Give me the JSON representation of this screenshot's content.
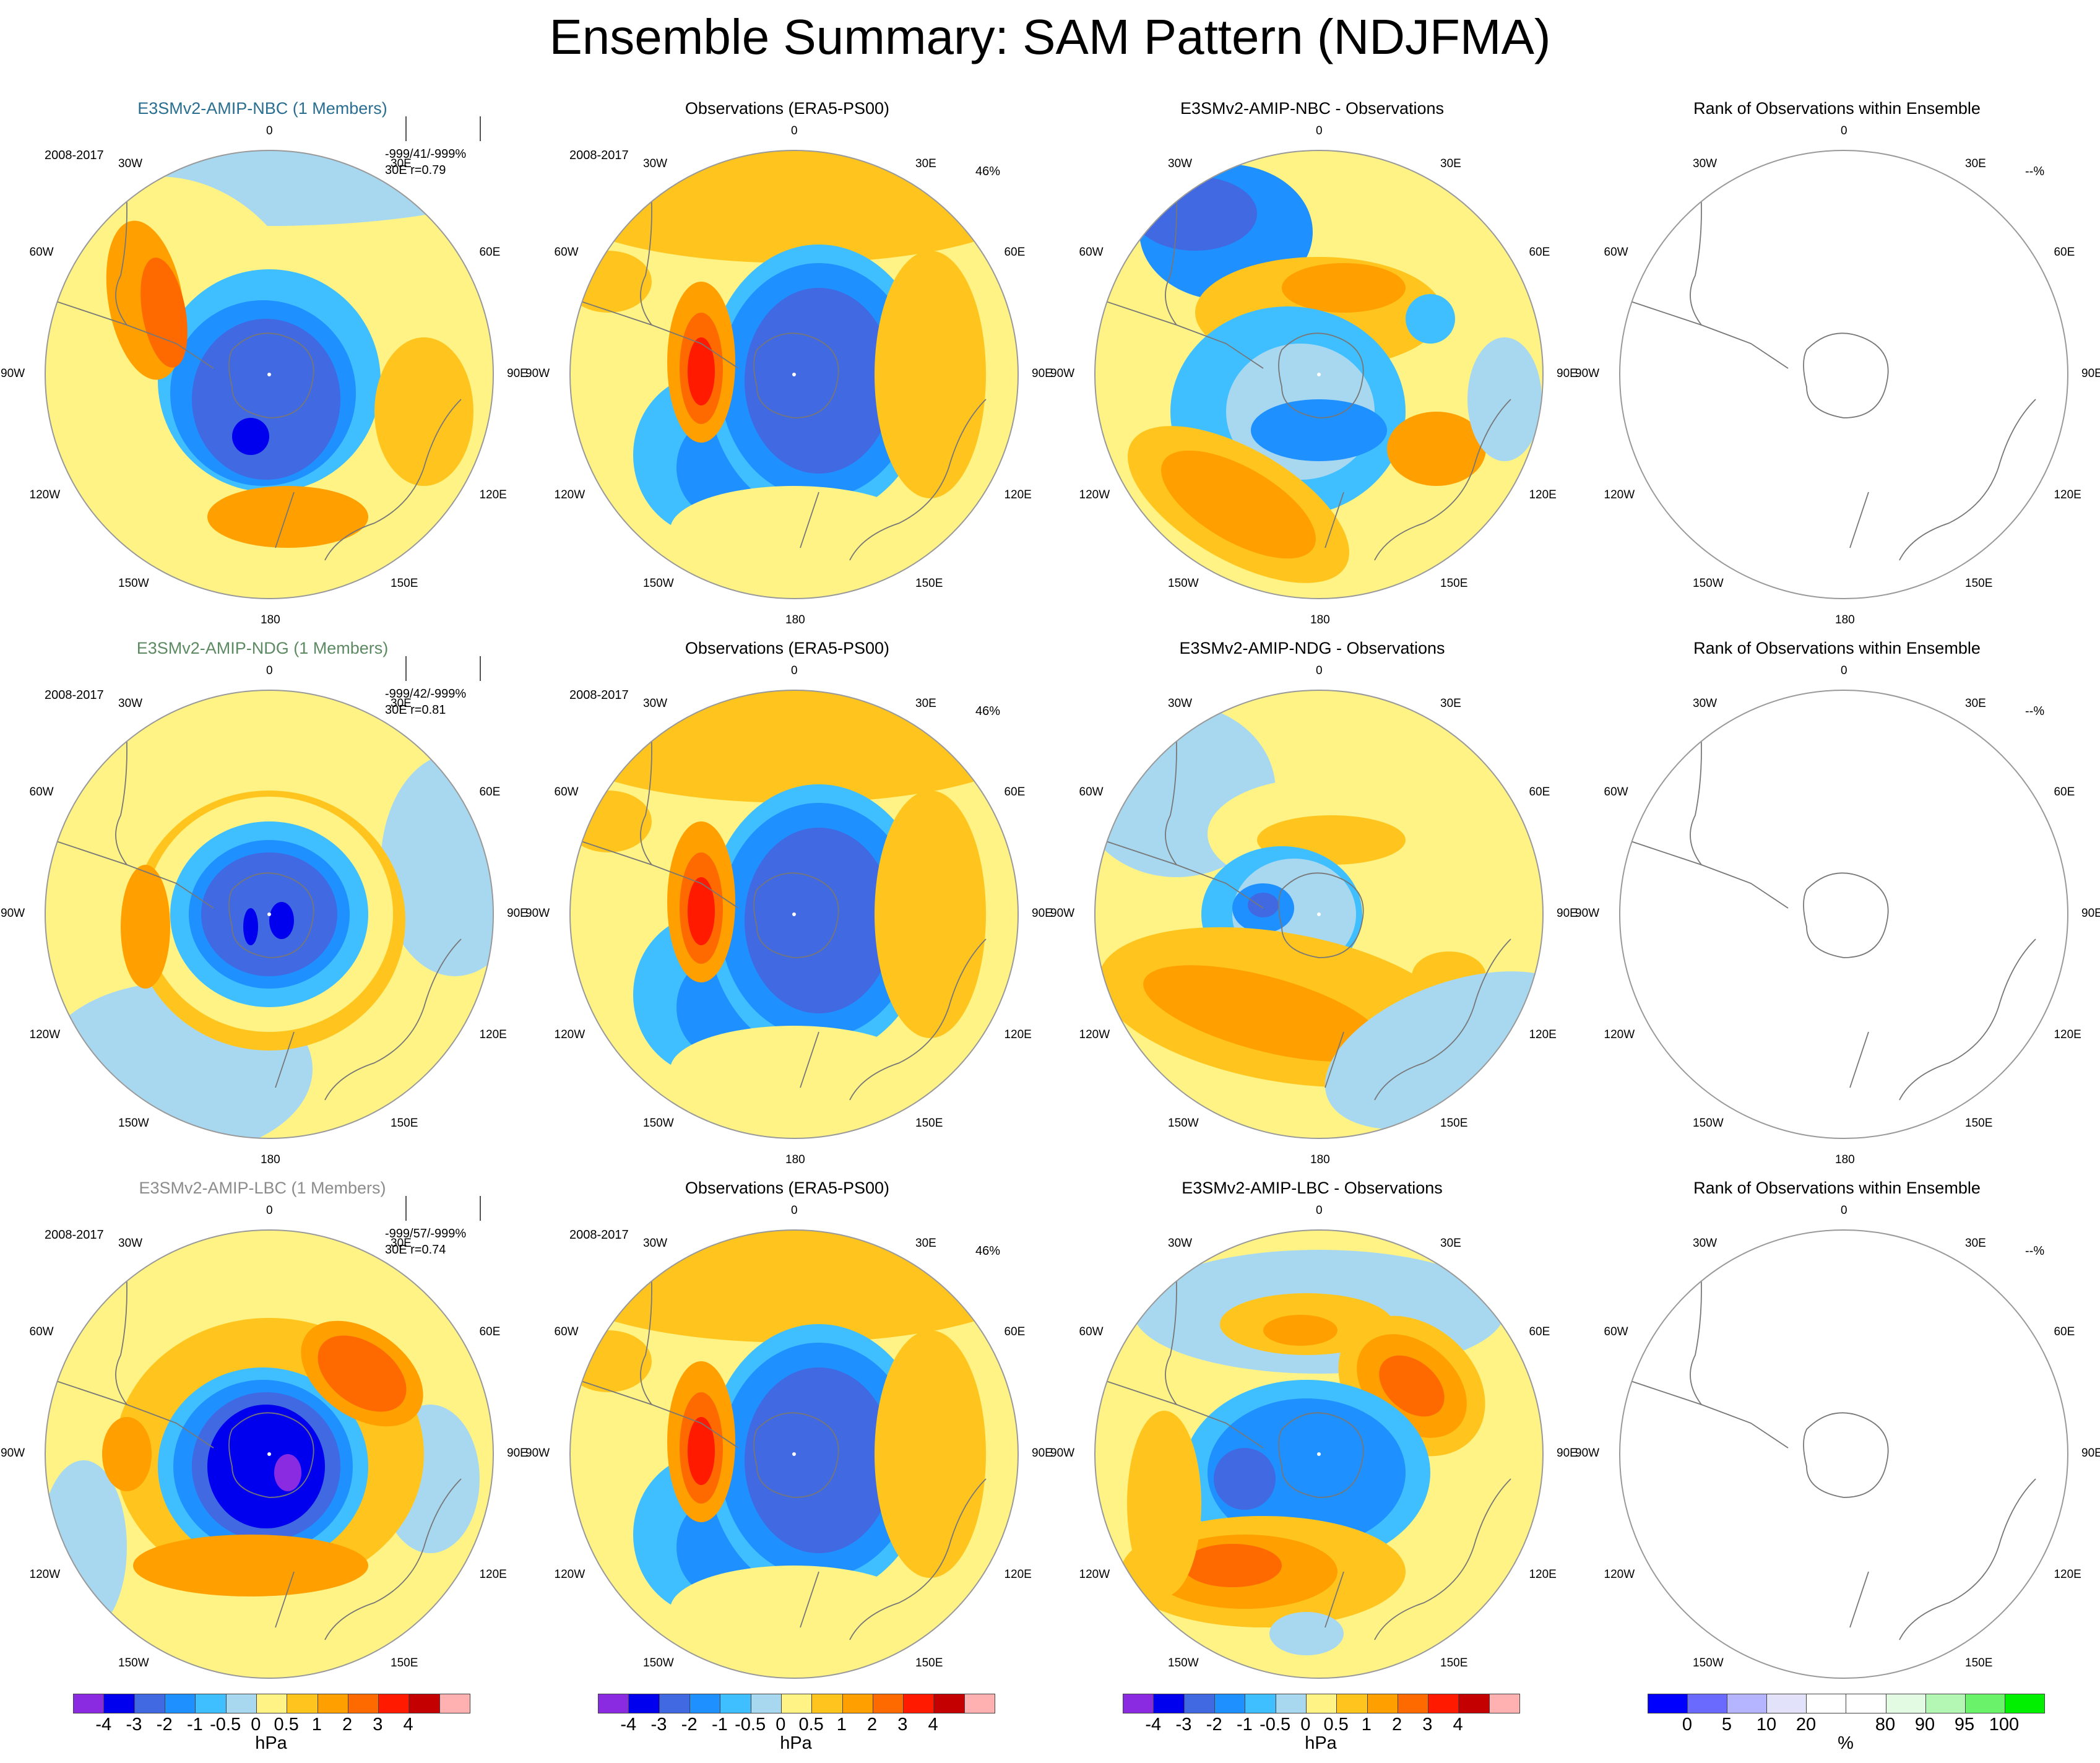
{
  "title": "Ensemble Summary: SAM Pattern (NDJFMA)",
  "lon_labels": [
    "0",
    "30E",
    "60E",
    "90E",
    "120E",
    "150E",
    "180",
    "150W",
    "120W",
    "90W",
    "60W",
    "30W"
  ],
  "rows": [
    {
      "model": {
        "title": "E3SMv2-AMIP-NBC (1 Members)",
        "title_color": "#2a6e91",
        "period": "2008-2017",
        "stat_line1": "-999/41/-999%",
        "stat_line2": "30E r=0.79"
      },
      "obs": {
        "title": "Observations (ERA5-PS00)",
        "period": "2008-2017",
        "pct": "46%"
      },
      "diff": {
        "title": "E3SMv2-AMIP-NBC - Observations"
      },
      "rank": {
        "title": "Rank of Observations within Ensemble",
        "pct": "--%"
      }
    },
    {
      "model": {
        "title": "E3SMv2-AMIP-NDG (1 Members)",
        "title_color": "#5d8a62",
        "period": "2008-2017",
        "stat_line1": "-999/42/-999%",
        "stat_line2": "30E r=0.81"
      },
      "obs": {
        "title": "Observations (ERA5-PS00)",
        "period": "2008-2017",
        "pct": "46%"
      },
      "diff": {
        "title": "E3SMv2-AMIP-NDG - Observations"
      },
      "rank": {
        "title": "Rank of Observations within Ensemble",
        "pct": "--%"
      }
    },
    {
      "model": {
        "title": "E3SMv2-AMIP-LBC (1 Members)",
        "title_color": "#8c8c8c",
        "period": "2008-2017",
        "stat_line1": "-999/57/-999%",
        "stat_line2": "30E r=0.74"
      },
      "obs": {
        "title": "Observations (ERA5-PS00)",
        "period": "2008-2017",
        "pct": "46%"
      },
      "diff": {
        "title": "E3SMv2-AMIP-LBC - Observations"
      },
      "rank": {
        "title": "Rank of Observations within Ensemble",
        "pct": "--%"
      }
    }
  ],
  "colorbars": {
    "hpa": {
      "colors": [
        "#8a2be2",
        "#0000ee",
        "#4169e1",
        "#1e90ff",
        "#3fbfff",
        "#a8d8f0",
        "#fff385",
        "#ffc51e",
        "#ff9f00",
        "#ff6a00",
        "#ff1a00",
        "#c40000",
        "#ffb0b0"
      ],
      "labels": [
        "-4",
        "-3",
        "-2",
        "-1",
        "-0.5",
        "0",
        "0.5",
        "1",
        "2",
        "3",
        "4"
      ],
      "unit": "hPa"
    },
    "pct": {
      "colors": [
        "#0000ff",
        "#6a6aff",
        "#b4b4ff",
        "#e2e2fb",
        "#ffffff",
        "#ffffff",
        "#e2fbe2",
        "#b4f6b4",
        "#6af26a",
        "#00f000"
      ],
      "labels": [
        "0",
        "5",
        "10",
        "20",
        "80",
        "90",
        "95",
        "100"
      ],
      "unit": "%"
    }
  },
  "chart_data": [
    {
      "type": "heatmap",
      "description_units": "hPa",
      "panels": [
        {
          "title": "E3SMv2-AMIP-NBC (1 Members)",
          "stats": "-999/41/-999%",
          "corr": "30E r=0.79"
        },
        {
          "title": "Observations (ERA5-PS00)",
          "pct": "46%"
        },
        {
          "title": "E3SMv2-AMIP-NBC - Observations"
        },
        {
          "title": "Rank of Observations within Ensemble",
          "pct": "--%"
        },
        {
          "title": "E3SMv2-AMIP-NDG (1 Members)",
          "stats": "-999/42/-999%",
          "corr": "30E r=0.81"
        },
        {
          "title": "Observations (ERA5-PS00)",
          "pct": "46%"
        },
        {
          "title": "E3SMv2-AMIP-NDG - Observations"
        },
        {
          "title": "Rank of Observations within Ensemble",
          "pct": "--%"
        },
        {
          "title": "E3SMv2-AMIP-LBC (1 Members)",
          "stats": "-999/57/-999%",
          "corr": "30E r=0.74"
        },
        {
          "title": "Observations (ERA5-PS00)",
          "pct": "46%"
        },
        {
          "title": "E3SMv2-AMIP-LBC - Observations"
        },
        {
          "title": "Rank of Observations within Ensemble",
          "pct": "--%"
        }
      ],
      "contour_levels_hpa": [
        -4,
        -3,
        -2,
        -1,
        -0.5,
        0,
        0.5,
        1,
        2,
        3,
        4
      ],
      "rank_levels_pct": [
        0,
        5,
        10,
        20,
        80,
        90,
        95,
        100
      ]
    }
  ]
}
